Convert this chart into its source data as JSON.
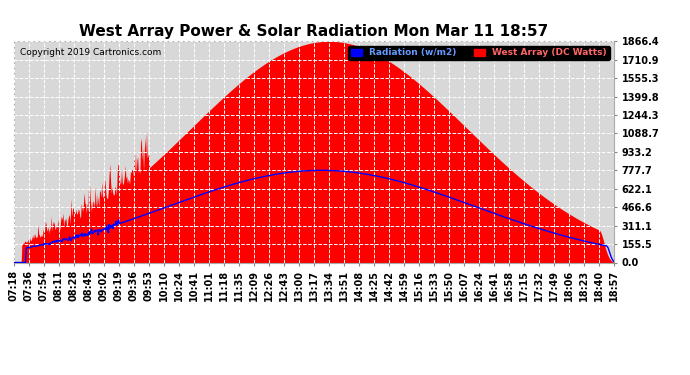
{
  "title": "West Array Power & Solar Radiation Mon Mar 11 18:57",
  "copyright": "Copyright 2019 Cartronics.com",
  "legend_radiation": "Radiation (w/m2)",
  "legend_west": "West Array (DC Watts)",
  "yticks": [
    0.0,
    155.5,
    311.1,
    466.6,
    622.1,
    777.7,
    933.2,
    1088.7,
    1244.3,
    1399.8,
    1555.3,
    1710.9,
    1866.4
  ],
  "ymax": 1866.4,
  "ymin": 0.0,
  "bg_color": "#ffffff",
  "plot_bg_color": "#d8d8d8",
  "grid_color": "#ffffff",
  "red_fill_color": "#ff0000",
  "blue_line_color": "#0000ff",
  "title_fontsize": 11,
  "tick_fontsize": 7,
  "xtick_labels": [
    "07:18",
    "07:36",
    "07:54",
    "08:11",
    "08:28",
    "08:45",
    "09:02",
    "09:19",
    "09:36",
    "09:53",
    "10:10",
    "10:24",
    "10:41",
    "11:01",
    "11:18",
    "11:35",
    "12:09",
    "12:26",
    "12:43",
    "13:00",
    "13:17",
    "13:34",
    "13:51",
    "14:08",
    "14:25",
    "14:42",
    "14:59",
    "15:16",
    "15:33",
    "15:50",
    "16:07",
    "16:24",
    "16:41",
    "16:58",
    "17:15",
    "17:32",
    "17:49",
    "18:06",
    "18:23",
    "18:40",
    "18:57"
  ]
}
